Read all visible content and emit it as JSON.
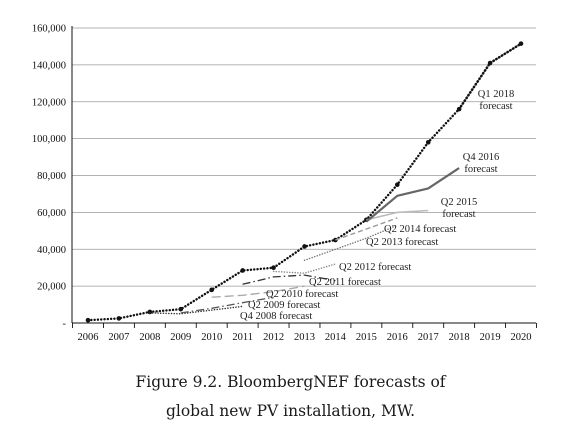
{
  "caption": {
    "line1": "Figure 9.2. BloombergNEF forecasts of",
    "line2": "global new PV installation, MW."
  },
  "chart_data": {
    "type": "line",
    "title": "",
    "xlabel": "",
    "ylabel": "",
    "xlim": [
      2006,
      2020
    ],
    "ylim": [
      0,
      160000
    ],
    "x_ticks": [
      "2006",
      "2007",
      "2008",
      "2009",
      "2010",
      "2011",
      "2012",
      "2013",
      "2014",
      "2015",
      "2016",
      "2017",
      "2018",
      "2019",
      "2020"
    ],
    "y_ticks": [
      "-",
      "20,000",
      "40,000",
      "60,000",
      "80,000",
      "100,000",
      "120,000",
      "140,000",
      "160,000"
    ],
    "y_tick_values": [
      0,
      20000,
      40000,
      60000,
      80000,
      100000,
      120000,
      140000,
      160000
    ],
    "grid": "horizontal",
    "series": [
      {
        "key": "actual",
        "name": "",
        "color": "#111111",
        "style": "dotted-thick",
        "x": [
          2006,
          2007,
          2008,
          2009,
          2010,
          2011,
          2012,
          2013,
          2014,
          2015,
          2016,
          2017,
          2018,
          2019,
          2020
        ],
        "y": [
          1500,
          2500,
          6000,
          7500,
          18000,
          28500,
          30000,
          41500,
          45000,
          56000,
          75000,
          98000,
          116000,
          141000,
          151500
        ]
      },
      {
        "key": "q4_2008",
        "name": "Q4 2008 forecast",
        "color": "#333333",
        "style": "dotted",
        "x": [
          2008,
          2009,
          2010,
          2011
        ],
        "y": [
          5500,
          5000,
          7000,
          9000
        ]
      },
      {
        "key": "q2_2009",
        "name": "Q2 2009 forecast",
        "color": "#555555",
        "style": "dashdot",
        "x": [
          2009,
          2010,
          2011,
          2012
        ],
        "y": [
          5500,
          8000,
          11000,
          14000
        ]
      },
      {
        "key": "q2_2010",
        "name": "Q2 2010 forecast",
        "color": "#aaaaaa",
        "style": "longdash",
        "x": [
          2010,
          2011,
          2012,
          2013
        ],
        "y": [
          14000,
          15000,
          17000,
          20000
        ]
      },
      {
        "key": "q2_2011",
        "name": "Q2 2011 forecast",
        "color": "#333333",
        "style": "dashdot",
        "x": [
          2011,
          2012,
          2013,
          2014
        ],
        "y": [
          21000,
          25000,
          26000,
          23000
        ]
      },
      {
        "key": "q2_2012",
        "name": "Q2 2012 forecast",
        "color": "#888888",
        "style": "dotted",
        "x": [
          2012,
          2013,
          2014
        ],
        "y": [
          28000,
          27000,
          32000
        ]
      },
      {
        "key": "q2_2013",
        "name": "Q2 2013 forecast",
        "color": "#777777",
        "style": "dotted",
        "x": [
          2013,
          2014,
          2015,
          2016
        ],
        "y": [
          34000,
          40000,
          46000,
          53000
        ]
      },
      {
        "key": "q2_2014",
        "name": "Q2 2014 forecast",
        "color": "#999999",
        "style": "dashed",
        "x": [
          2014,
          2015,
          2016
        ],
        "y": [
          45000,
          51000,
          57000
        ]
      },
      {
        "key": "q2_2015",
        "name": "Q2 2015 forecast",
        "color": "#bbbbbb",
        "style": "solid",
        "x": [
          2015,
          2016,
          2017
        ],
        "y": [
          56000,
          60000,
          61000
        ]
      },
      {
        "key": "q4_2016",
        "name": "Q4 2016 forecast",
        "color": "#666666",
        "style": "solid-thick",
        "x": [
          2015,
          2016,
          2017,
          2018
        ],
        "y": [
          55000,
          69000,
          73000,
          84000
        ]
      },
      {
        "key": "q1_2018",
        "name": "Q1 2018 forecast",
        "color": "#111111",
        "style": "dotted-thick",
        "x": [
          2018,
          2019,
          2020
        ],
        "y": [
          116000,
          141000,
          151500
        ]
      }
    ],
    "annotations": {
      "q1_2018": [
        "Q1 2018",
        "forecast"
      ],
      "q4_2016": [
        "Q4 2016",
        "forecast"
      ],
      "q2_2015": [
        "Q2 2015",
        "forecast"
      ],
      "q2_2014": [
        "Q2 2014 forecast"
      ],
      "q2_2013": [
        "Q2 2013 forecast"
      ],
      "q2_2012": [
        "Q2 2012 forecast"
      ],
      "q2_2011": [
        "Q2 2011 forecast"
      ],
      "q2_2010": [
        "Q2 2010 forecast"
      ],
      "q2_2009": [
        "Q2 2009 forecast"
      ],
      "q4_2008": [
        "Q4 2008 forecast"
      ]
    }
  }
}
